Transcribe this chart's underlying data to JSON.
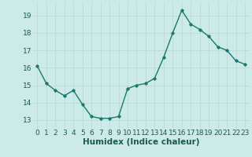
{
  "x": [
    0,
    1,
    2,
    3,
    4,
    5,
    6,
    7,
    8,
    9,
    10,
    11,
    12,
    13,
    14,
    15,
    16,
    17,
    18,
    19,
    20,
    21,
    22,
    23
  ],
  "y": [
    16.1,
    15.1,
    14.7,
    14.4,
    14.7,
    13.9,
    13.2,
    13.1,
    13.1,
    13.2,
    14.8,
    15.0,
    15.1,
    15.4,
    16.6,
    18.0,
    19.3,
    18.5,
    18.2,
    17.8,
    17.2,
    17.0,
    16.4,
    16.2
  ],
  "line_color": "#1a7a6e",
  "marker": "D",
  "marker_size": 1.8,
  "bg_color": "#cceae7",
  "grid_color": "#b8d8d5",
  "xlabel": "Humidex (Indice chaleur)",
  "ylim": [
    12.5,
    19.8
  ],
  "xlim": [
    -0.5,
    23.5
  ],
  "yticks": [
    13,
    14,
    15,
    16,
    17,
    18,
    19
  ],
  "xtick_labels": [
    "0",
    "1",
    "2",
    "3",
    "4",
    "5",
    "6",
    "7",
    "8",
    "9",
    "10",
    "11",
    "12",
    "13",
    "14",
    "15",
    "16",
    "17",
    "18",
    "19",
    "20",
    "21",
    "22",
    "23"
  ],
  "xlabel_fontsize": 7.5,
  "tick_fontsize": 6.5,
  "line_width": 1.0
}
